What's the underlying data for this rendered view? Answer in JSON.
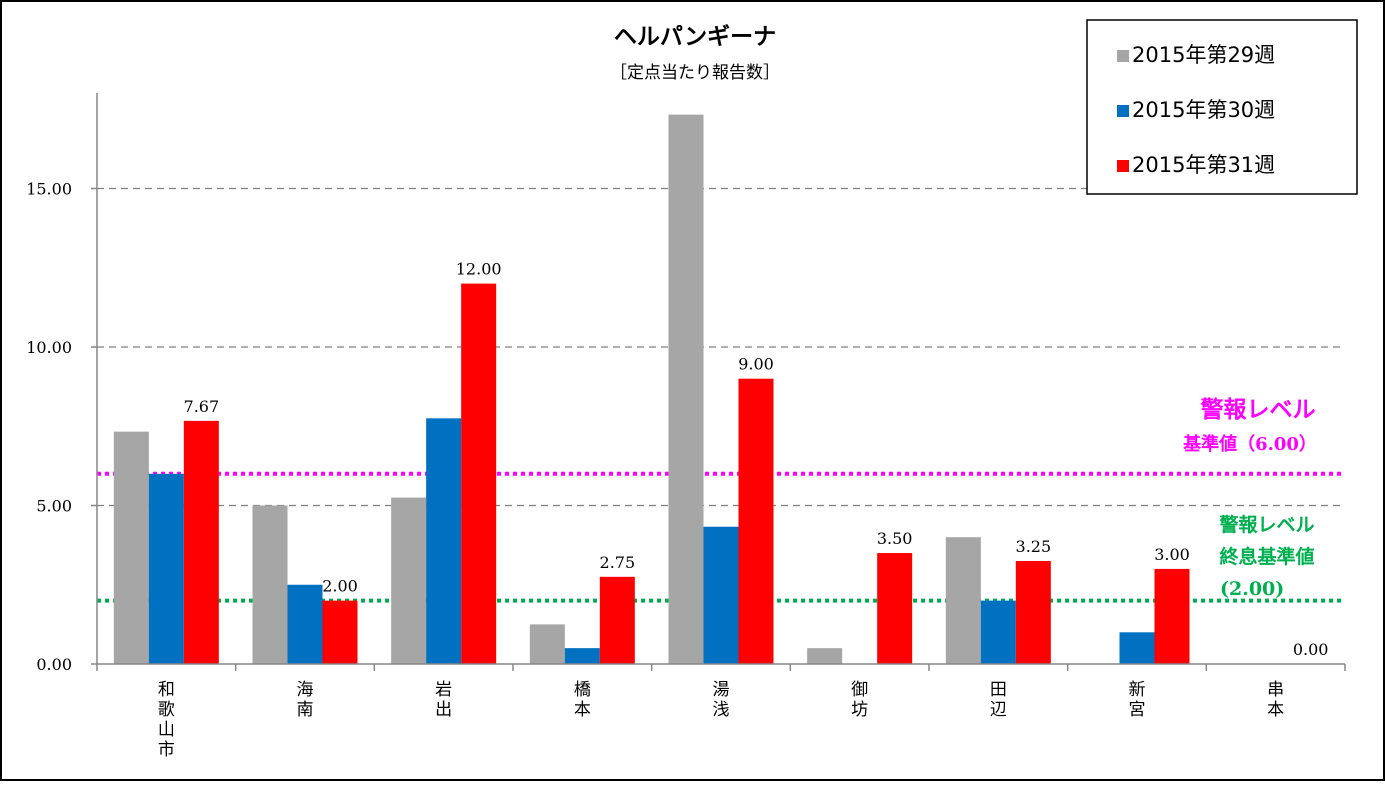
{
  "chart_data": {
    "type": "bar",
    "title": "ヘルパンギーナ",
    "subtitle": "［定点当たり報告数］",
    "categories": [
      "和歌山市",
      "海南",
      "岩出",
      "橋本",
      "湯浅",
      "御坊",
      "田辺",
      "新宮",
      "串本"
    ],
    "series": [
      {
        "name": "2015年第29週",
        "color": "#a6a6a6",
        "values": [
          7.33,
          5.0,
          5.25,
          1.25,
          17.33,
          0.5,
          4.0,
          0.0,
          0.0
        ]
      },
      {
        "name": "2015年第30週",
        "color": "#0070c0",
        "values": [
          6.0,
          2.5,
          7.75,
          0.5,
          4.33,
          0.0,
          2.0,
          1.0,
          0.0
        ]
      },
      {
        "name": "2015年第31週",
        "color": "#ff0000",
        "values": [
          7.67,
          2.0,
          12.0,
          2.75,
          9.0,
          3.5,
          3.25,
          3.0,
          0.0
        ]
      }
    ],
    "data_labels": [
      "7.67",
      "2.00",
      "12.00",
      "2.75",
      "9.00",
      "3.50",
      "3.25",
      "3.00",
      "0.00"
    ],
    "yticks": [
      0,
      5,
      10,
      15
    ],
    "ytick_labels": [
      "0.00",
      "5.00",
      "10.00",
      "15.00"
    ],
    "ylim": [
      0,
      17.5
    ],
    "grid": true,
    "legend_position": "top-right",
    "reference_lines": [
      {
        "value": 6.0,
        "color": "#ff00ff",
        "label_lines": [
          "警報レベル",
          "基準値（6.00）"
        ]
      },
      {
        "value": 2.0,
        "color": "#00b050",
        "label_lines": [
          "警報レベル",
          "終息基準値",
          "(2.00)"
        ]
      }
    ]
  }
}
